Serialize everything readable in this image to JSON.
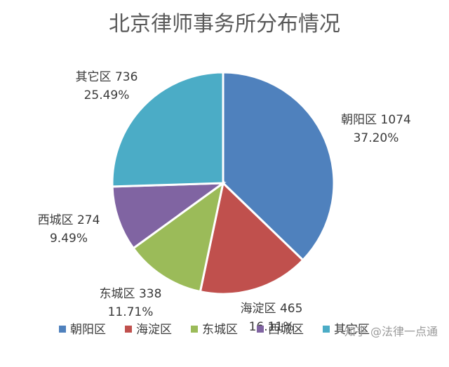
{
  "chart_data": {
    "type": "pie",
    "title": "北京律师事务所分布情况",
    "slices": [
      {
        "name": "朝阳区",
        "value": 1074,
        "percent": "37.20%",
        "label": "朝阳区 1074",
        "color": "#4f81bd"
      },
      {
        "name": "海淀区",
        "value": 465,
        "percent": "16.11%",
        "label": "海淀区 465",
        "color": "#c0504d"
      },
      {
        "name": "东城区",
        "value": 338,
        "percent": "11.71%",
        "label": "东城区 338",
        "color": "#9bbb59"
      },
      {
        "name": "西城区",
        "value": 274,
        "percent": "9.49%",
        "label": "西城区 274",
        "color": "#8064a2"
      },
      {
        "name": "其它区",
        "value": 736,
        "percent": "25.49%",
        "label": "其它区 736",
        "color": "#4bacc6"
      }
    ],
    "legend_position": "bottom"
  },
  "watermark": "知乎 @法律一点通"
}
